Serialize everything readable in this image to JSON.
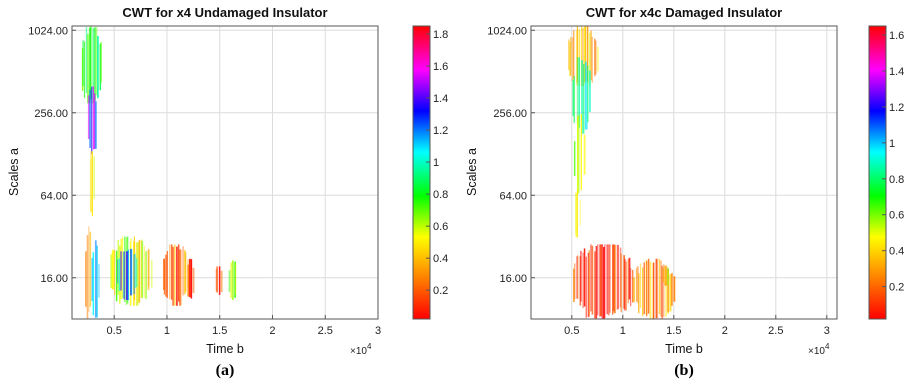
{
  "chart_data": [
    {
      "type": "heatmap",
      "panel_label": "(a)",
      "title": "CWT for x4 Undamaged Insulator",
      "xlabel": "Time b",
      "ylabel": "Scales a",
      "x_multiplier_label": "×10",
      "x_multiplier_exp": "4",
      "xlim": [
        0.1,
        3.0
      ],
      "x_ticks": [
        0.5,
        1,
        1.5,
        2,
        2.5,
        3
      ],
      "x_tick_labels": [
        "0.5",
        "1",
        "1.5",
        "2",
        "2.5",
        "3"
      ],
      "y_scale": "log2",
      "ylim": [
        8,
        1100
      ],
      "y_ticks": [
        16,
        64,
        256,
        1024
      ],
      "y_tick_labels": [
        "16.00",
        "64.00",
        "256.00",
        "1024.00"
      ],
      "grid": true,
      "colorbar": {
        "range": [
          0.02,
          1.85
        ],
        "ticks": [
          0.2,
          0.4,
          0.6,
          0.8,
          1,
          1.2,
          1.4,
          1.6,
          1.8
        ],
        "tick_labels": [
          "0.2",
          "0.4",
          "0.6",
          "0.8",
          "1",
          "1.2",
          "1.4",
          "1.6",
          "1.8"
        ]
      },
      "colormap": [
        "#ff0000",
        "#ff8000",
        "#ffff00",
        "#00ff00",
        "#00ffff",
        "#0000ff",
        "#ff00ff",
        "#ff0000"
      ],
      "blobs": [
        {
          "x": [
            0.18,
            0.38
          ],
          "y": [
            300,
            1100
          ],
          "v": 0.45
        },
        {
          "x": [
            0.24,
            0.33
          ],
          "y": [
            128,
            400
          ],
          "v": 0.75
        },
        {
          "x": [
            0.26,
            0.31
          ],
          "y": [
            45,
            140
          ],
          "v": 0.35
        },
        {
          "x": [
            0.22,
            0.28
          ],
          "y": [
            8,
            38
          ],
          "v": 0.1
        },
        {
          "x": [
            0.28,
            0.35
          ],
          "y": [
            8,
            30
          ],
          "v": 0.55
        },
        {
          "x": [
            0.45,
            0.85
          ],
          "y": [
            10,
            32
          ],
          "v": 0.3
        },
        {
          "x": [
            0.52,
            0.72
          ],
          "y": [
            11,
            26
          ],
          "v": 0.65
        },
        {
          "x": [
            0.95,
            1.2
          ],
          "y": [
            10,
            28
          ],
          "v": 0.12
        },
        {
          "x": [
            1.18,
            1.25
          ],
          "y": [
            11,
            22
          ],
          "v": 0.08
        },
        {
          "x": [
            1.45,
            1.52
          ],
          "y": [
            12,
            20
          ],
          "v": 0.05
        },
        {
          "x": [
            1.58,
            1.66
          ],
          "y": [
            11,
            22
          ],
          "v": 0.3
        }
      ]
    },
    {
      "type": "heatmap",
      "panel_label": "(b)",
      "title": "CWT for x4c Damaged Insulator",
      "xlabel": "Time b",
      "ylabel": "Scales a",
      "x_multiplier_label": "×10",
      "x_multiplier_exp": "4",
      "xlim": [
        0.1,
        3.1
      ],
      "x_ticks": [
        0.5,
        1,
        1.5,
        2,
        2.5,
        3
      ],
      "x_tick_labels": [
        "0.5",
        "1",
        "1.5",
        "2",
        "2.5",
        "3"
      ],
      "y_scale": "log2",
      "ylim": [
        8,
        1100
      ],
      "y_ticks": [
        16,
        64,
        256,
        1024
      ],
      "y_tick_labels": [
        "16.00",
        "64.00",
        "256.00",
        "1024.00"
      ],
      "grid": true,
      "colorbar": {
        "range": [
          0.02,
          1.65
        ],
        "ticks": [
          0.2,
          0.4,
          0.6,
          0.8,
          1,
          1.2,
          1.4,
          1.6
        ],
        "tick_labels": [
          "0.2",
          "0.4",
          "0.6",
          "0.8",
          "1",
          "1.2",
          "1.4",
          "1.6"
        ]
      },
      "colormap": [
        "#ff0000",
        "#ff8000",
        "#ffff00",
        "#00ff00",
        "#00ffff",
        "#0000ff",
        "#ff00ff",
        "#ff0000"
      ],
      "blobs": [
        {
          "x": [
            0.45,
            0.75
          ],
          "y": [
            400,
            1100
          ],
          "v": 0.22
        },
        {
          "x": [
            0.5,
            0.68
          ],
          "y": [
            180,
            650
          ],
          "v": 0.55
        },
        {
          "x": [
            0.52,
            0.62
          ],
          "y": [
            60,
            250
          ],
          "v": 0.3
        },
        {
          "x": [
            0.52,
            0.58
          ],
          "y": [
            30,
            70
          ],
          "v": 0.2
        },
        {
          "x": [
            0.5,
            1.1
          ],
          "y": [
            8,
            28
          ],
          "v": 0.05
        },
        {
          "x": [
            1.1,
            1.5
          ],
          "y": [
            8,
            22
          ],
          "v": 0.15
        },
        {
          "x": [
            1.38,
            1.45
          ],
          "y": [
            14,
            20
          ],
          "v": 0.25
        }
      ]
    }
  ]
}
